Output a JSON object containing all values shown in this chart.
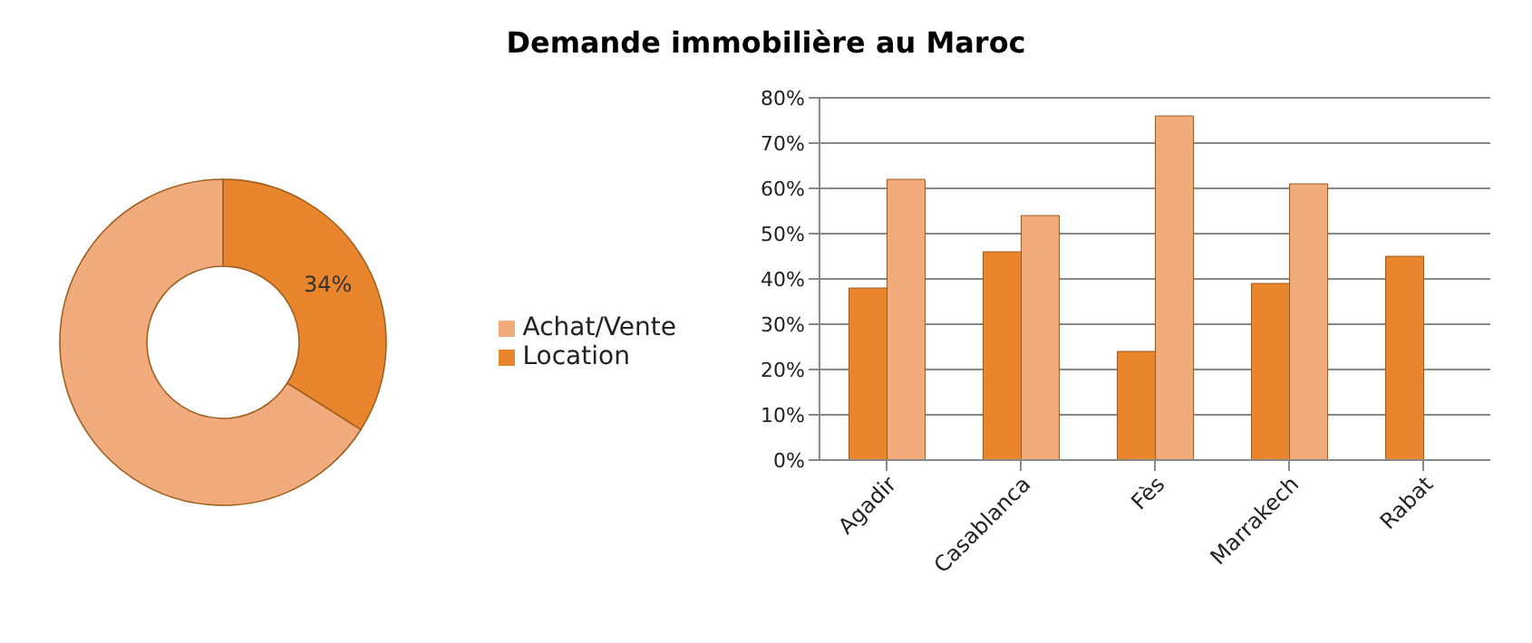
{
  "chart_data": [
    {
      "type": "donut",
      "title": "Demande immobilière au Maroc",
      "categories": [
        "Location",
        "Achat/Vente"
      ],
      "values": [
        34,
        66
      ],
      "colors": [
        "#e9852c",
        "#f2ab7c"
      ],
      "value_labels": [
        "34%",
        null
      ],
      "legend": "right"
    },
    {
      "type": "bar",
      "categories": [
        "Agadir",
        "Casablanca",
        "Fès",
        "Marrakech",
        "Rabat"
      ],
      "series": [
        {
          "color": "#e9852c",
          "values": [
            38,
            46,
            24,
            39,
            45
          ]
        },
        {
          "color": "#f2ab7c",
          "values": [
            62,
            54,
            76,
            61,
            null
          ]
        }
      ],
      "ylim": [
        0,
        80
      ],
      "yticks": [
        {
          "value": 0,
          "label": "0%"
        },
        {
          "value": 10,
          "label": "10%"
        },
        {
          "value": 20,
          "label": "20%"
        },
        {
          "value": 30,
          "label": "30%"
        },
        {
          "value": 40,
          "label": "40%"
        },
        {
          "value": 50,
          "label": "50%"
        },
        {
          "value": 60,
          "label": "60%"
        },
        {
          "value": 70,
          "label": "70%"
        },
        {
          "value": 80,
          "label": "80%"
        }
      ],
      "grid": "y"
    }
  ]
}
